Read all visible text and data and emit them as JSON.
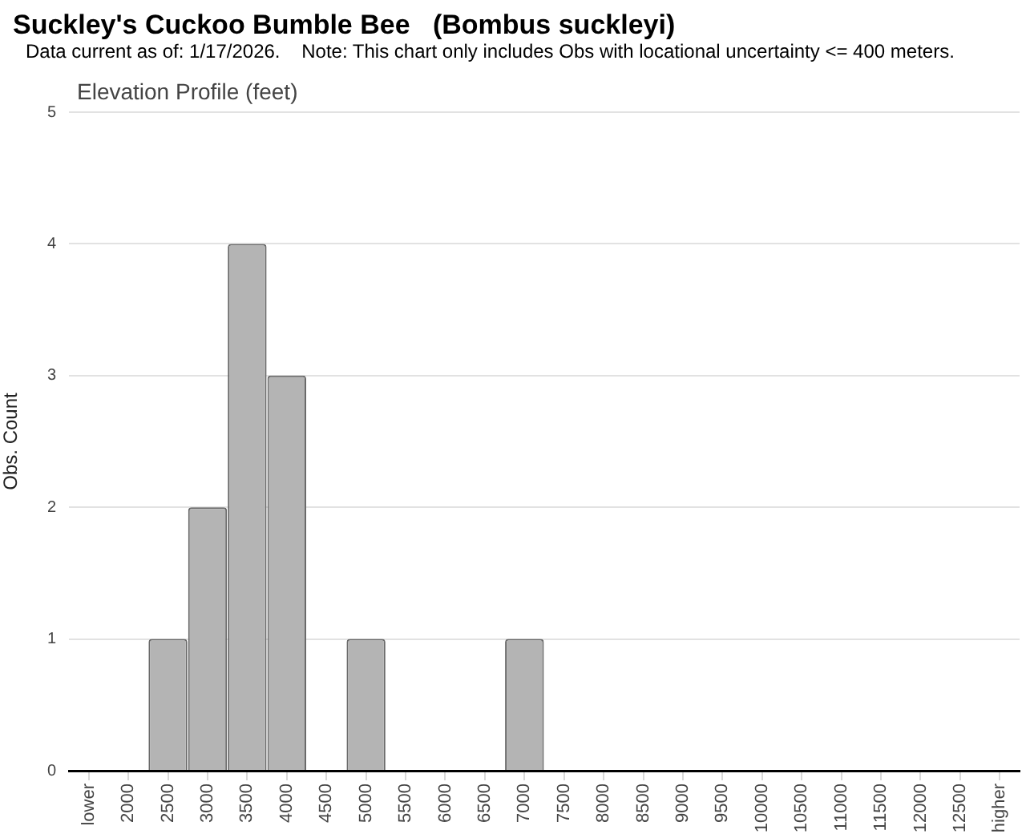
{
  "chart_data": {
    "type": "bar",
    "title": "Suckley's Cuckoo Bumble Bee   (Bombus suckleyi)",
    "subtitle": "Elevation Profile (feet)",
    "annotations": [
      "Data current as of: 1/17/2026.    Note: This chart only includes Obs with locational uncertainty <= 400 meters."
    ],
    "categories": [
      "lower",
      "2000",
      "2500",
      "3000",
      "3500",
      "4000",
      "4500",
      "5000",
      "5500",
      "6000",
      "6500",
      "7000",
      "7500",
      "8000",
      "8500",
      "9000",
      "9500",
      "10000",
      "10500",
      "11000",
      "11500",
      "12000",
      "12500",
      "higher"
    ],
    "values": [
      0,
      0,
      1,
      2,
      4,
      3,
      0,
      1,
      0,
      0,
      0,
      1,
      0,
      0,
      0,
      0,
      0,
      0,
      0,
      0,
      0,
      0,
      0,
      0
    ],
    "color": "#b4b4b4",
    "ylabel": "Obs. Count",
    "ylim": [
      0,
      5
    ],
    "yticks": [
      0,
      1,
      2,
      3,
      4,
      5
    ],
    "grid": "y"
  }
}
